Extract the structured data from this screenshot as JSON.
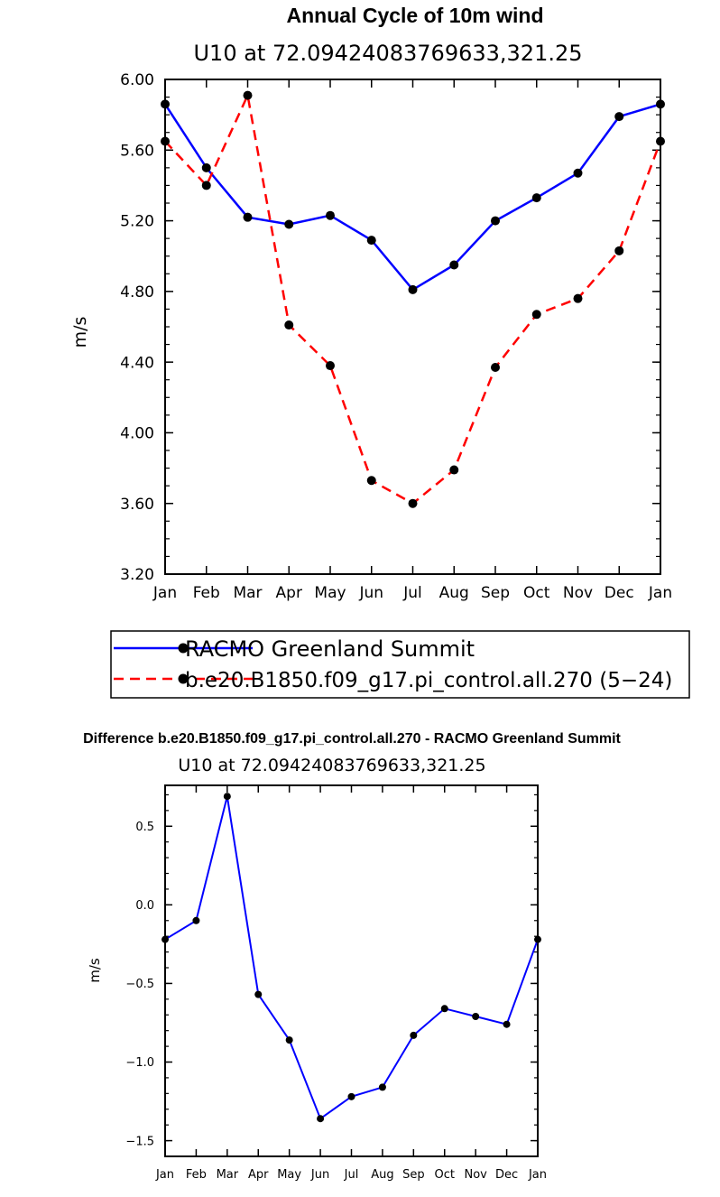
{
  "colors": {
    "series1": "#0000ff",
    "series2": "#ff0000",
    "marker": "#000000"
  },
  "chart_data": [
    {
      "type": "line",
      "title": "Annual Cycle of 10m wind",
      "subtitle": "U10  at  72.09424083769633,321.25",
      "xlabel": "",
      "ylabel": "m/s",
      "categories": [
        "Jan",
        "Feb",
        "Mar",
        "Apr",
        "May",
        "Jun",
        "Jul",
        "Aug",
        "Sep",
        "Oct",
        "Nov",
        "Dec",
        "Jan"
      ],
      "ylim": [
        3.2,
        6.0
      ],
      "yticks": [
        "3.20",
        "3.60",
        "4.00",
        "4.40",
        "4.80",
        "5.20",
        "5.60",
        "6.00"
      ],
      "series": [
        {
          "name": "RACMO Greenland Summit",
          "style": "solid",
          "values": [
            5.86,
            5.5,
            5.22,
            5.18,
            5.23,
            5.09,
            4.81,
            4.95,
            5.2,
            5.33,
            5.47,
            5.79,
            5.86
          ]
        },
        {
          "name": "b.e20.B1850.f09_g17.pi_control.all.270 (5−24)",
          "style": "dashed",
          "values": [
            5.65,
            5.4,
            5.91,
            4.61,
            4.38,
            3.73,
            3.6,
            3.79,
            4.37,
            4.67,
            4.76,
            5.03,
            5.65
          ]
        }
      ],
      "legend": "below"
    },
    {
      "type": "line",
      "title": "Difference b.e20.B1850.f09_g17.pi_control.all.270 - RACMO Greenland Summit",
      "subtitle": "U10  at  72.09424083769633,321.25",
      "xlabel": "",
      "ylabel": "m/s",
      "categories": [
        "Jan",
        "Feb",
        "Mar",
        "Apr",
        "May",
        "Jun",
        "Jul",
        "Aug",
        "Sep",
        "Oct",
        "Nov",
        "Dec",
        "Jan"
      ],
      "ylim": [
        -1.6,
        0.76
      ],
      "yticks": [
        "−1.5",
        "−1.0",
        "−0.5",
        "0.0",
        "0.5"
      ],
      "ytickvalues": [
        -1.5,
        -1.0,
        -0.5,
        0.0,
        0.5
      ],
      "series": [
        {
          "name": "Difference",
          "style": "solid",
          "values": [
            -0.22,
            -0.1,
            0.69,
            -0.57,
            -0.86,
            -1.36,
            -1.22,
            -1.16,
            -0.83,
            -0.66,
            -0.71,
            -0.76,
            -0.22
          ]
        }
      ]
    }
  ]
}
